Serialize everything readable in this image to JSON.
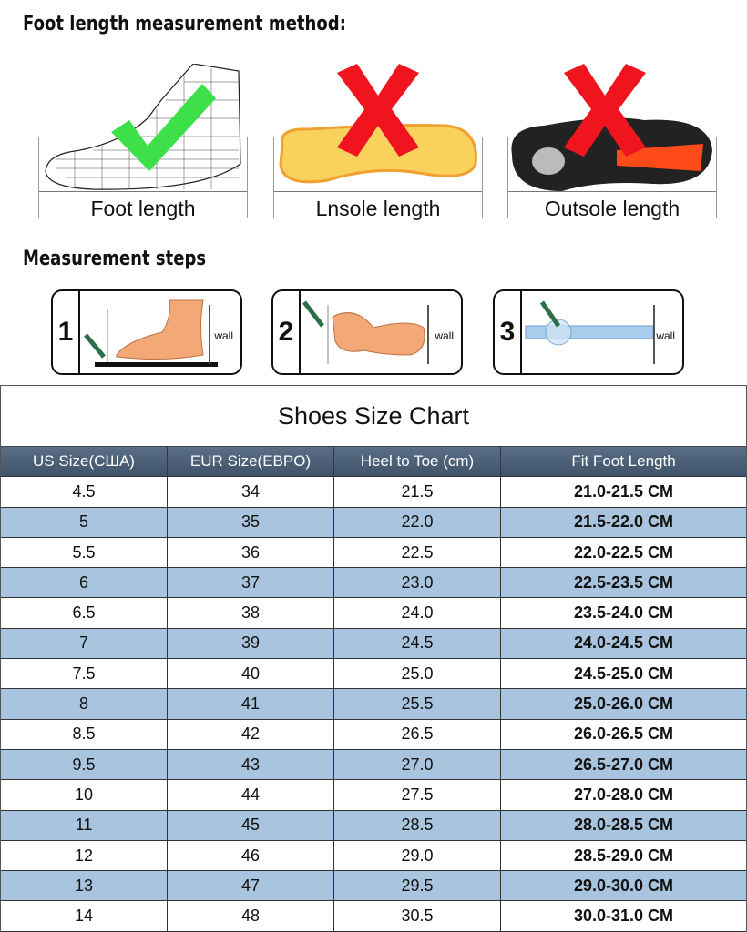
{
  "headings": {
    "method": "Foot length measurement method:",
    "steps": "Measurement steps"
  },
  "methods": [
    {
      "label": "Foot length",
      "mark": "check-icon",
      "correct": true
    },
    {
      "label": "Lnsole length",
      "mark": "cross-icon",
      "correct": false
    },
    {
      "label": "Outsole length",
      "mark": "cross-icon",
      "correct": false
    }
  ],
  "steps": [
    {
      "num": "1",
      "wall": "wall"
    },
    {
      "num": "2",
      "wall": "wall"
    },
    {
      "num": "3",
      "wall": "wall"
    }
  ],
  "colors": {
    "check": "#3ee04a",
    "cross": "#f0141e",
    "header": "#4a5f76",
    "alt_row": "#a9c4de"
  },
  "table": {
    "title": "Shoes Size Chart",
    "headers": [
      "US Size(США)",
      "EUR Size(EBPO)",
      "Heel to Toe (cm)",
      "Fit Foot Length"
    ],
    "rows": [
      [
        "4.5",
        "34",
        "21.5",
        "21.0-21.5 CM"
      ],
      [
        "5",
        "35",
        "22.0",
        "21.5-22.0 CM"
      ],
      [
        "5.5",
        "36",
        "22.5",
        "22.0-22.5 CM"
      ],
      [
        "6",
        "37",
        "23.0",
        "22.5-23.5 CM"
      ],
      [
        "6.5",
        "38",
        "24.0",
        "23.5-24.0 CM"
      ],
      [
        "7",
        "39",
        "24.5",
        "24.0-24.5 CM"
      ],
      [
        "7.5",
        "40",
        "25.0",
        "24.5-25.0 CM"
      ],
      [
        "8",
        "41",
        "25.5",
        "25.0-26.0 CM"
      ],
      [
        "8.5",
        "42",
        "26.5",
        "26.0-26.5 CM"
      ],
      [
        "9.5",
        "43",
        "27.0",
        "26.5-27.0 CM"
      ],
      [
        "10",
        "44",
        "27.5",
        "27.0-28.0 CM"
      ],
      [
        "11",
        "45",
        "28.5",
        "28.0-28.5 CM"
      ],
      [
        "12",
        "46",
        "29.0",
        "28.5-29.0 CM"
      ],
      [
        "13",
        "47",
        "29.5",
        "29.0-30.0 CM"
      ],
      [
        "14",
        "48",
        "30.5",
        "30.0-31.0 CM"
      ]
    ]
  }
}
